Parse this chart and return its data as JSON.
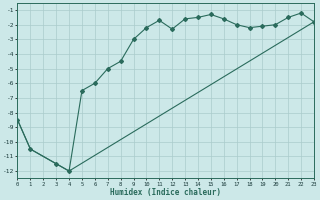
{
  "xlabel": "Humidex (Indice chaleur)",
  "bg_color": "#cce8e8",
  "grid_color": "#aacccc",
  "line_color": "#2a6b5c",
  "xlim": [
    0,
    23
  ],
  "ylim": [
    -12.5,
    -0.5
  ],
  "yticks": [
    -1,
    -2,
    -3,
    -4,
    -5,
    -6,
    -7,
    -8,
    -9,
    -10,
    -11,
    -12
  ],
  "xticks": [
    0,
    1,
    2,
    3,
    4,
    5,
    6,
    7,
    8,
    9,
    10,
    11,
    12,
    13,
    14,
    15,
    16,
    17,
    18,
    19,
    20,
    21,
    22,
    23
  ],
  "curve1_x": [
    0,
    1,
    3,
    4,
    5,
    6,
    7,
    8,
    9,
    10,
    11,
    12,
    13,
    14,
    15,
    16,
    17,
    18,
    19,
    20,
    21,
    22,
    23
  ],
  "curve1_y": [
    -8.5,
    -10.5,
    -11.5,
    -12.0,
    -6.5,
    -6.0,
    -5.0,
    -4.5,
    -3.0,
    -2.2,
    -1.7,
    -2.3,
    -1.6,
    -1.5,
    -1.3,
    -1.6,
    -2.0,
    -2.2,
    -2.1,
    -2.0,
    -1.5,
    -1.2,
    -1.8
  ],
  "curve2_x": [
    0,
    1,
    3,
    4,
    23
  ],
  "curve2_y": [
    -8.5,
    -10.5,
    -11.5,
    -12.0,
    -1.8
  ]
}
